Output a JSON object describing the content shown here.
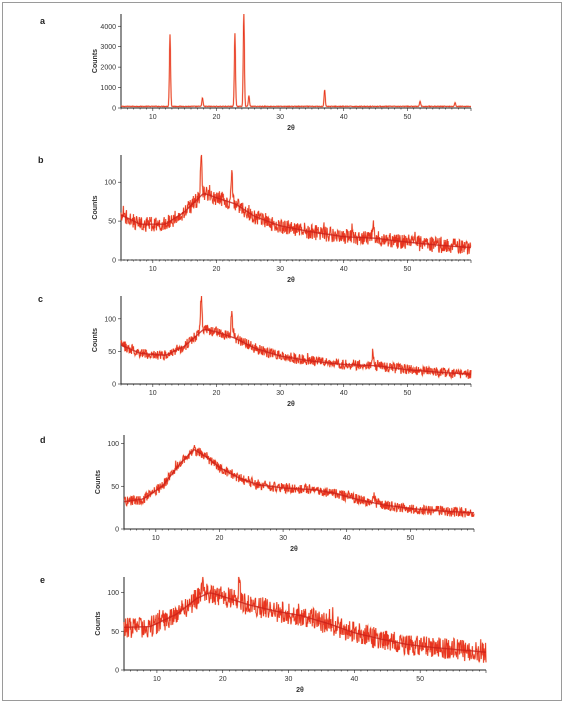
{
  "colors": {
    "trace": "#e8341f",
    "trace_light": "#f08a5a",
    "axis": "#222222",
    "frame": "#9a9a9a"
  },
  "chart_data": [
    {
      "panel": "a",
      "type": "line",
      "xlabel": "2θ",
      "ylabel": "Counts",
      "xlim": [
        5,
        60
      ],
      "ylim": [
        0,
        4600
      ],
      "xticks": [
        10,
        20,
        30,
        40,
        50
      ],
      "yticks": [
        0,
        1000,
        2000,
        3000,
        4000
      ],
      "baseline": 80,
      "noise": 30,
      "peaks": [
        {
          "x": 12.7,
          "y": 3520
        },
        {
          "x": 17.8,
          "y": 420
        },
        {
          "x": 22.9,
          "y": 3580
        },
        {
          "x": 24.3,
          "y": 4600
        },
        {
          "x": 25.1,
          "y": 520
        },
        {
          "x": 37.0,
          "y": 820
        },
        {
          "x": 52.0,
          "y": 250
        },
        {
          "x": 57.5,
          "y": 180
        }
      ]
    },
    {
      "panel": "b",
      "type": "line",
      "xlabel": "2θ",
      "ylabel": "Counts",
      "xlim": [
        5,
        60
      ],
      "ylim": [
        0,
        135
      ],
      "xticks": [
        10,
        20,
        30,
        40,
        50
      ],
      "yticks": [
        0,
        50,
        100
      ],
      "profile": [
        [
          5,
          58
        ],
        [
          8,
          46
        ],
        [
          12,
          46
        ],
        [
          15,
          62
        ],
        [
          18,
          86
        ],
        [
          20,
          80
        ],
        [
          23,
          72
        ],
        [
          26,
          56
        ],
        [
          30,
          44
        ],
        [
          35,
          36
        ],
        [
          40,
          30
        ],
        [
          45,
          28
        ],
        [
          50,
          23
        ],
        [
          55,
          19
        ],
        [
          60,
          16
        ]
      ],
      "noise": 10,
      "spikes": [
        {
          "x": 17.6,
          "y": 133
        },
        {
          "x": 22.4,
          "y": 112
        },
        {
          "x": 44.6,
          "y": 48
        }
      ]
    },
    {
      "panel": "c",
      "type": "line",
      "xlabel": "2θ",
      "ylabel": "Counts",
      "xlim": [
        5,
        60
      ],
      "ylim": [
        0,
        135
      ],
      "xticks": [
        10,
        20,
        30,
        40,
        50
      ],
      "yticks": [
        0,
        50,
        100
      ],
      "profile": [
        [
          5,
          60
        ],
        [
          8,
          47
        ],
        [
          12,
          44
        ],
        [
          15,
          58
        ],
        [
          18,
          84
        ],
        [
          20,
          80
        ],
        [
          23,
          70
        ],
        [
          26,
          55
        ],
        [
          30,
          43
        ],
        [
          35,
          35
        ],
        [
          40,
          30
        ],
        [
          45,
          28
        ],
        [
          50,
          22
        ],
        [
          55,
          18
        ],
        [
          60,
          15
        ]
      ],
      "noise": 8,
      "spikes": [
        {
          "x": 17.6,
          "y": 133
        },
        {
          "x": 22.4,
          "y": 112
        },
        {
          "x": 44.6,
          "y": 48
        }
      ]
    },
    {
      "panel": "d",
      "type": "line",
      "xlabel": "2θ",
      "ylabel": "Counts",
      "xlim": [
        5,
        60
      ],
      "ylim": [
        0,
        110
      ],
      "xticks": [
        10,
        20,
        30,
        40,
        50
      ],
      "yticks": [
        0,
        50,
        100
      ],
      "profile": [
        [
          5,
          32
        ],
        [
          8,
          35
        ],
        [
          11,
          50
        ],
        [
          14,
          78
        ],
        [
          16,
          93
        ],
        [
          18,
          84
        ],
        [
          20,
          72
        ],
        [
          23,
          60
        ],
        [
          26,
          52
        ],
        [
          30,
          48
        ],
        [
          35,
          46
        ],
        [
          38,
          42
        ],
        [
          42,
          34
        ],
        [
          46,
          28
        ],
        [
          50,
          24
        ],
        [
          55,
          21
        ],
        [
          60,
          19
        ]
      ],
      "noise": 6,
      "spikes": [
        {
          "x": 44.3,
          "y": 42
        }
      ]
    },
    {
      "panel": "e",
      "type": "line",
      "xlabel": "2θ",
      "ylabel": "Counts",
      "xlim": [
        5,
        60
      ],
      "ylim": [
        0,
        120
      ],
      "xticks": [
        10,
        20,
        30,
        40,
        50
      ],
      "yticks": [
        0,
        50,
        100
      ],
      "profile": [
        [
          5,
          55
        ],
        [
          9,
          56
        ],
        [
          13,
          72
        ],
        [
          16,
          92
        ],
        [
          18,
          100
        ],
        [
          20,
          95
        ],
        [
          24,
          84
        ],
        [
          28,
          76
        ],
        [
          32,
          70
        ],
        [
          36,
          60
        ],
        [
          40,
          48
        ],
        [
          44,
          40
        ],
        [
          48,
          33
        ],
        [
          52,
          29
        ],
        [
          56,
          26
        ],
        [
          60,
          23
        ]
      ],
      "noise": 14,
      "spikes": [
        {
          "x": 17.0,
          "y": 120
        },
        {
          "x": 22.5,
          "y": 118
        }
      ]
    }
  ]
}
